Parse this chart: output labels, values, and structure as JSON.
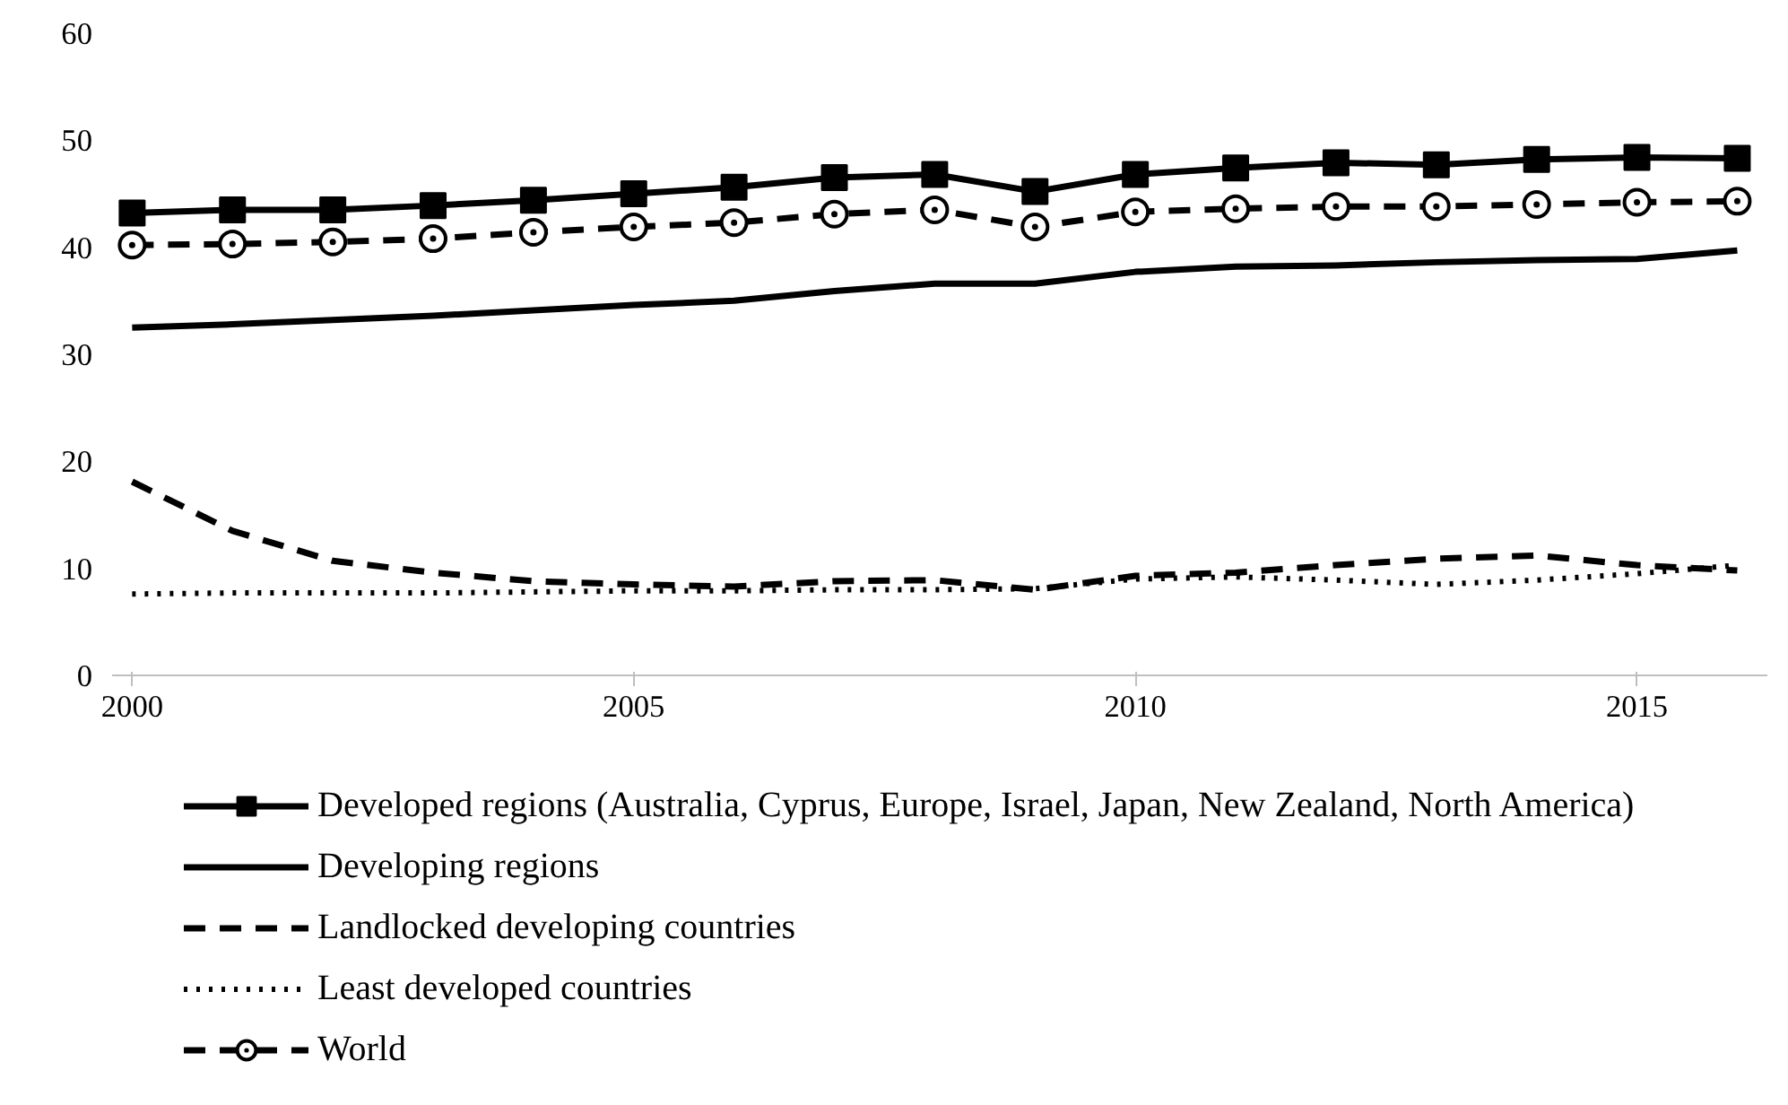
{
  "chart_data": {
    "type": "line",
    "x": [
      2000,
      2001,
      2002,
      2003,
      2004,
      2005,
      2006,
      2007,
      2008,
      2009,
      2010,
      2011,
      2012,
      2013,
      2014,
      2015,
      2016
    ],
    "xlim": [
      1999.8,
      2016.3
    ],
    "xticks": [
      2000,
      2005,
      2010,
      2015
    ],
    "ylim": [
      0,
      60
    ],
    "yticks": [
      0,
      10,
      20,
      30,
      40,
      50,
      60
    ],
    "grid": false,
    "legend": "bottom",
    "series": [
      {
        "name": "Developed regions (Australia, Cyprus, Europe, Israel, Japan, New Zealand, North America)",
        "color": "#000000",
        "marker": "square",
        "line_style": "solid",
        "values": [
          43.2,
          43.5,
          43.5,
          43.9,
          44.4,
          45.0,
          45.6,
          46.5,
          46.8,
          45.2,
          46.8,
          47.4,
          47.9,
          47.7,
          48.2,
          48.4,
          48.3
        ]
      },
      {
        "name": "Developing regions",
        "color": "#000000",
        "marker": "none",
        "line_style": "solid",
        "values": [
          32.5,
          32.8,
          33.2,
          33.6,
          34.1,
          34.6,
          35.0,
          35.9,
          36.6,
          36.6,
          37.7,
          38.2,
          38.3,
          38.6,
          38.8,
          38.9,
          39.7
        ]
      },
      {
        "name": "Landlocked developing countries",
        "color": "#000000",
        "marker": "none",
        "line_style": "dashed",
        "values": [
          18.1,
          13.5,
          10.7,
          9.6,
          8.8,
          8.5,
          8.3,
          8.8,
          8.9,
          8.0,
          9.3,
          9.6,
          10.3,
          10.9,
          11.2,
          10.3,
          9.8
        ]
      },
      {
        "name": "Least developed countries",
        "color": "#000000",
        "marker": "none",
        "line_style": "dotted",
        "values": [
          7.6,
          7.7,
          7.7,
          7.7,
          7.8,
          7.9,
          7.9,
          8.0,
          8.0,
          8.1,
          9.0,
          9.2,
          8.9,
          8.5,
          8.9,
          9.5,
          10.3
        ]
      },
      {
        "name": "World",
        "color": "#000000",
        "marker": "circle",
        "line_style": "dashed",
        "values": [
          40.2,
          40.3,
          40.5,
          40.8,
          41.4,
          41.9,
          42.3,
          43.1,
          43.5,
          41.9,
          43.3,
          43.6,
          43.8,
          43.8,
          44.0,
          44.2,
          44.3
        ]
      }
    ]
  }
}
